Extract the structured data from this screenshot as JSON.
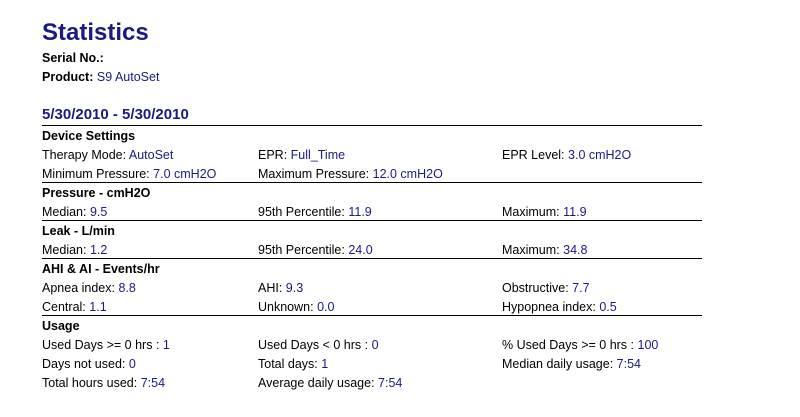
{
  "header": {
    "title": "Statistics",
    "serial_label": "Serial No.:",
    "product_label": "Product:",
    "product": "S9 AutoSet"
  },
  "date_range": "5/30/2010 - 5/30/2010",
  "sections": [
    {
      "title": "Device Settings",
      "rows": [
        [
          {
            "label": "Therapy Mode:",
            "value": "AutoSet"
          },
          {
            "label": "EPR:",
            "value": "Full_Time"
          },
          {
            "label": "EPR Level:",
            "value": "3.0 cmH2O"
          }
        ],
        [
          {
            "label": "Minimum Pressure:",
            "value": "7.0 cmH2O"
          },
          {
            "label": "Maximum Pressure:",
            "value": "12.0 cmH2O"
          }
        ]
      ]
    },
    {
      "title": "Pressure - cmH2O",
      "rows": [
        [
          {
            "label": "Median:",
            "value": "9.5"
          },
          {
            "label": "95th Percentile:",
            "value": "11.9"
          },
          {
            "label": "Maximum:",
            "value": "11.9"
          }
        ]
      ]
    },
    {
      "title": "Leak - L/min",
      "rows": [
        [
          {
            "label": "Median:",
            "value": "1.2"
          },
          {
            "label": "95th Percentile:",
            "value": "24.0"
          },
          {
            "label": "Maximum:",
            "value": "34.8"
          }
        ]
      ]
    },
    {
      "title": "AHI & AI - Events/hr",
      "rows": [
        [
          {
            "label": "Apnea index:",
            "value": "8.8"
          },
          {
            "label": "AHI:",
            "value": "9.3"
          },
          {
            "label": "Obstructive:",
            "value": "7.7"
          }
        ],
        [
          {
            "label": "Central:",
            "value": "1.1"
          },
          {
            "label": "Unknown:",
            "value": "0.0"
          },
          {
            "label": "Hypopnea index:",
            "value": "0.5"
          }
        ]
      ]
    },
    {
      "title": "Usage",
      "rows": [
        [
          {
            "label": "Used Days >= 0 hrs :",
            "value": "1"
          },
          {
            "label": "Used Days < 0 hrs :",
            "value": "0"
          },
          {
            "label": "% Used Days >= 0 hrs :",
            "value": "100"
          }
        ],
        [
          {
            "label": "Days not used:",
            "value": "0"
          },
          {
            "label": "Total days:",
            "value": "1"
          },
          {
            "label": "Median daily usage:",
            "value": "7:54"
          }
        ],
        [
          {
            "label": "Total hours used:",
            "value": "7:54"
          },
          {
            "label": "Average daily usage:",
            "value": "7:54"
          }
        ]
      ]
    }
  ]
}
